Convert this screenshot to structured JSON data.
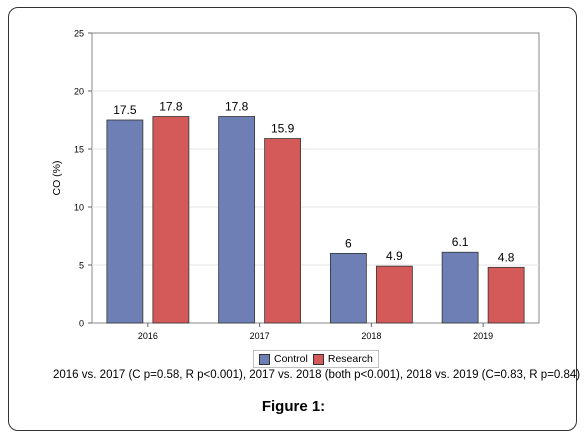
{
  "chart_data": {
    "type": "bar",
    "categories": [
      "2016",
      "2017",
      "2018",
      "2019"
    ],
    "series": [
      {
        "name": "Control",
        "values": [
          17.5,
          17.8,
          6,
          6.1
        ],
        "labels": [
          "17.5",
          "17.8",
          "6",
          "6.1"
        ],
        "color": "#6e7fb5"
      },
      {
        "name": "Research",
        "values": [
          17.8,
          15.9,
          4.9,
          4.8
        ],
        "labels": [
          "17.8",
          "15.9",
          "4.9",
          "4.8"
        ],
        "color": "#d45a5a"
      }
    ],
    "ylabel": "CO (%)",
    "xlabel": "",
    "ylim": [
      0,
      25
    ],
    "yticks": [
      "0",
      "5",
      "10",
      "15",
      "20",
      "25"
    ],
    "grid": true,
    "legend_position": "bottom"
  },
  "caption": "2016 vs. 2017 (C p=0.58, R p<0.001), 2017 vs. 2018 (both p<0.001), 2018 vs. 2019 (C=0.83, R p=0.84)",
  "figure_title": "Figure 1:"
}
